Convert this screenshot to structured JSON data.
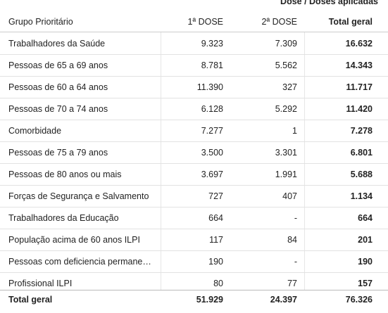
{
  "header": {
    "super": "Dose / Doses aplicadas"
  },
  "table": {
    "columns": [
      "Grupo Prioritário",
      "1ª DOSE",
      "2ª DOSE",
      "Total geral"
    ],
    "rows": [
      [
        "Trabalhadores da Saúde",
        "9.323",
        "7.309",
        "16.632"
      ],
      [
        "Pessoas de 65 a 69 anos",
        "8.781",
        "5.562",
        "14.343"
      ],
      [
        "Pessoas de 60 a 64 anos",
        "11.390",
        "327",
        "11.717"
      ],
      [
        "Pessoas de 70 a 74 anos",
        "6.128",
        "5.292",
        "11.420"
      ],
      [
        "Comorbidade",
        "7.277",
        "1",
        "7.278"
      ],
      [
        "Pessoas de 75 a 79 anos",
        "3.500",
        "3.301",
        "6.801"
      ],
      [
        "Pessoas de 80 anos ou mais",
        "3.697",
        "1.991",
        "5.688"
      ],
      [
        "Forças de Segurança e Salvamento",
        "727",
        "407",
        "1.134"
      ],
      [
        "Trabalhadores da Educação",
        "664",
        "-",
        "664"
      ],
      [
        "População acima de 60 anos ILPI",
        "117",
        "84",
        "201"
      ],
      [
        "Pessoas com deficiencia permane…",
        "190",
        "-",
        "190"
      ],
      [
        "Profissional ILPI",
        "80",
        "77",
        "157"
      ]
    ],
    "total": [
      "Total geral",
      "51.929",
      "24.397",
      "76.326"
    ]
  }
}
